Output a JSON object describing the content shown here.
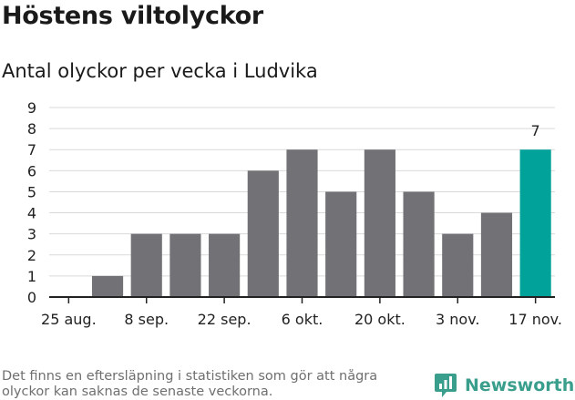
{
  "title": "Höstens viltolyckor",
  "subtitle": "Antal olyckor per vecka i Ludvika",
  "footnote": "Det finns en eftersläpning i statistiken som gör att några olyckor kan saknas de senaste veckorna.",
  "brand": {
    "name": "Newsworthy",
    "icon": "bar-chart-speech-bubble-icon",
    "color": "#3a9e8d"
  },
  "colors": {
    "bar": "#727176",
    "highlight": "#00a29a",
    "grid": "#d9d9d9",
    "axis": "#222222"
  },
  "chart_data": {
    "type": "bar",
    "title": "Höstens viltolyckor",
    "subtitle": "Antal olyckor per vecka i Ludvika",
    "xlabel": "",
    "ylabel": "",
    "ylim": [
      0,
      9
    ],
    "yticks": [
      0,
      1,
      2,
      3,
      4,
      5,
      6,
      7,
      8,
      9
    ],
    "grid": true,
    "x_tick_labels": [
      {
        "index": 0,
        "label": "25 aug."
      },
      {
        "index": 2,
        "label": "8 sep."
      },
      {
        "index": 4,
        "label": "22 sep."
      },
      {
        "index": 6,
        "label": "6 okt."
      },
      {
        "index": 8,
        "label": "20 okt."
      },
      {
        "index": 10,
        "label": "3 nov."
      },
      {
        "index": 12,
        "label": "17 nov."
      }
    ],
    "values": [
      null,
      1,
      3,
      3,
      3,
      6,
      7,
      5,
      7,
      5,
      3,
      4,
      7
    ],
    "highlight_index": 12,
    "data_labels": [
      {
        "index": 12,
        "label": "7"
      }
    ]
  }
}
